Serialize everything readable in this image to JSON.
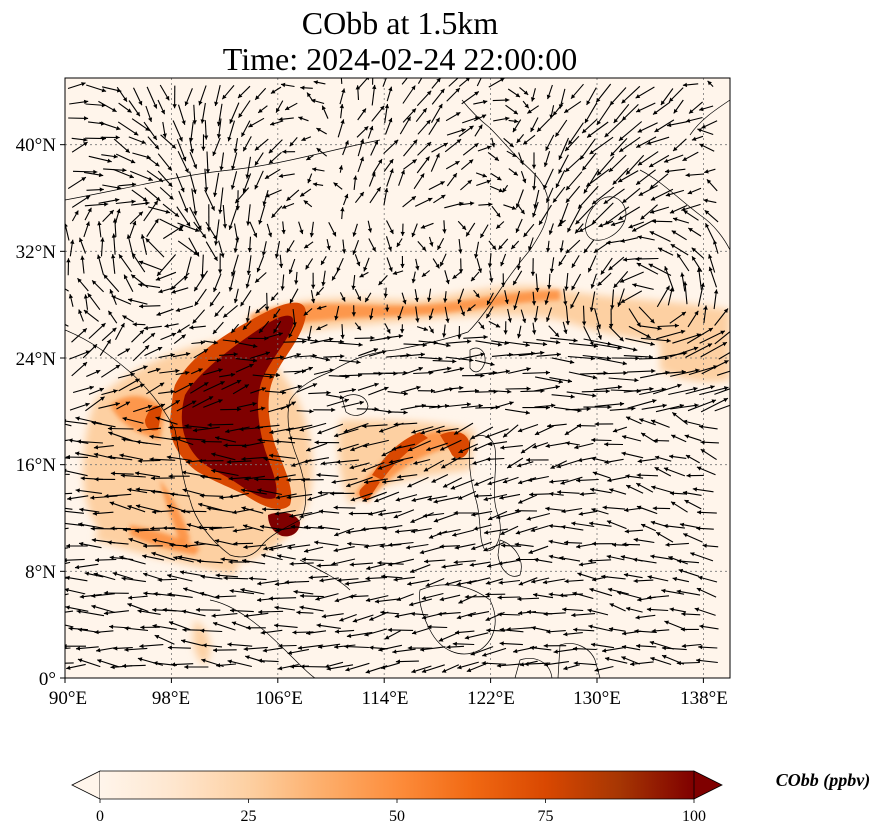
{
  "title": {
    "line1": "CObb at 1.5km",
    "line2": "Time: 2024-02-24 22:00:00"
  },
  "map": {
    "lon_range": [
      90,
      140
    ],
    "lat_range": [
      0,
      45
    ],
    "x_ticks": [
      "90°E",
      "98°E",
      "106°E",
      "114°E",
      "122°E",
      "130°E",
      "138°E"
    ],
    "y_ticks": [
      "0°",
      "8°N",
      "16°N",
      "24°N",
      "32°N",
      "40°N"
    ],
    "gridlines": true,
    "background_color": "#fff5eb",
    "plume_colors": [
      "#fdd0a2",
      "#fd8d3c",
      "#d94801",
      "#7f0000"
    ]
  },
  "colorbar": {
    "label": "CObb (ppbv)",
    "ticks": [
      "0",
      "25",
      "50",
      "75",
      "100"
    ],
    "range": [
      0,
      100
    ],
    "colormap": [
      "#fff5eb",
      "#fee6ce",
      "#fdd0a2",
      "#fdae6b",
      "#fd8d3c",
      "#f16913",
      "#d94801",
      "#a63603",
      "#7f0000"
    ]
  }
}
